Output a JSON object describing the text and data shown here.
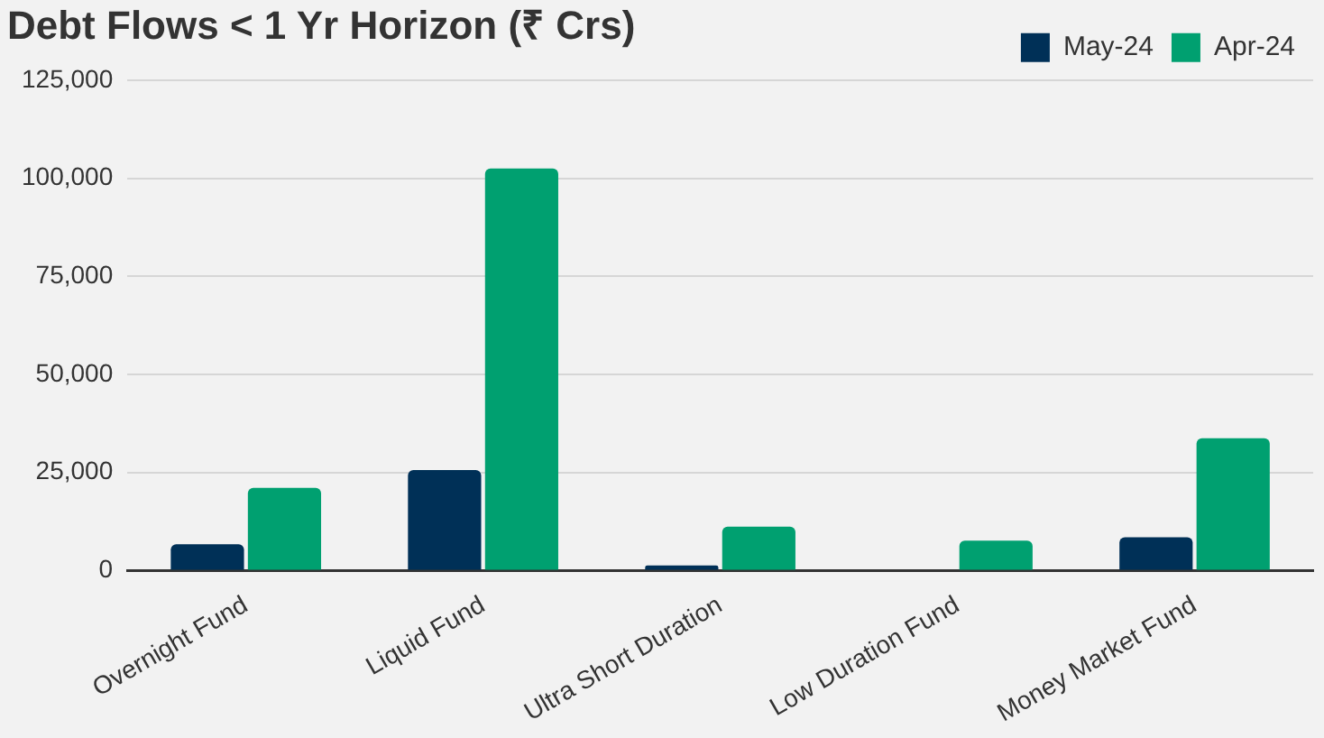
{
  "chart_data": {
    "type": "bar",
    "title": "Debt Flows < 1 Yr Horizon (₹ Crs)",
    "categories": [
      "Overnight Fund",
      "Liquid Fund",
      "Ultra Short Duration",
      "Low Duration Fund",
      "Money Market Fund"
    ],
    "series": [
      {
        "name": "May-24",
        "color": "#003057",
        "values": [
          6700,
          25600,
          1300,
          0,
          8500
        ]
      },
      {
        "name": "Apr-24",
        "color": "#00a070",
        "values": [
          21100,
          102500,
          11200,
          7600,
          33700
        ]
      }
    ],
    "ylim": [
      0,
      125000
    ],
    "yticks": [
      {
        "value": 0,
        "label": "0"
      },
      {
        "value": 25000,
        "label": "25,000"
      },
      {
        "value": 50000,
        "label": "50,000"
      },
      {
        "value": 75000,
        "label": "75,000"
      },
      {
        "value": 100000,
        "label": "100,000"
      },
      {
        "value": 125000,
        "label": "125,000"
      }
    ],
    "grid": "y",
    "legend": "top right"
  }
}
